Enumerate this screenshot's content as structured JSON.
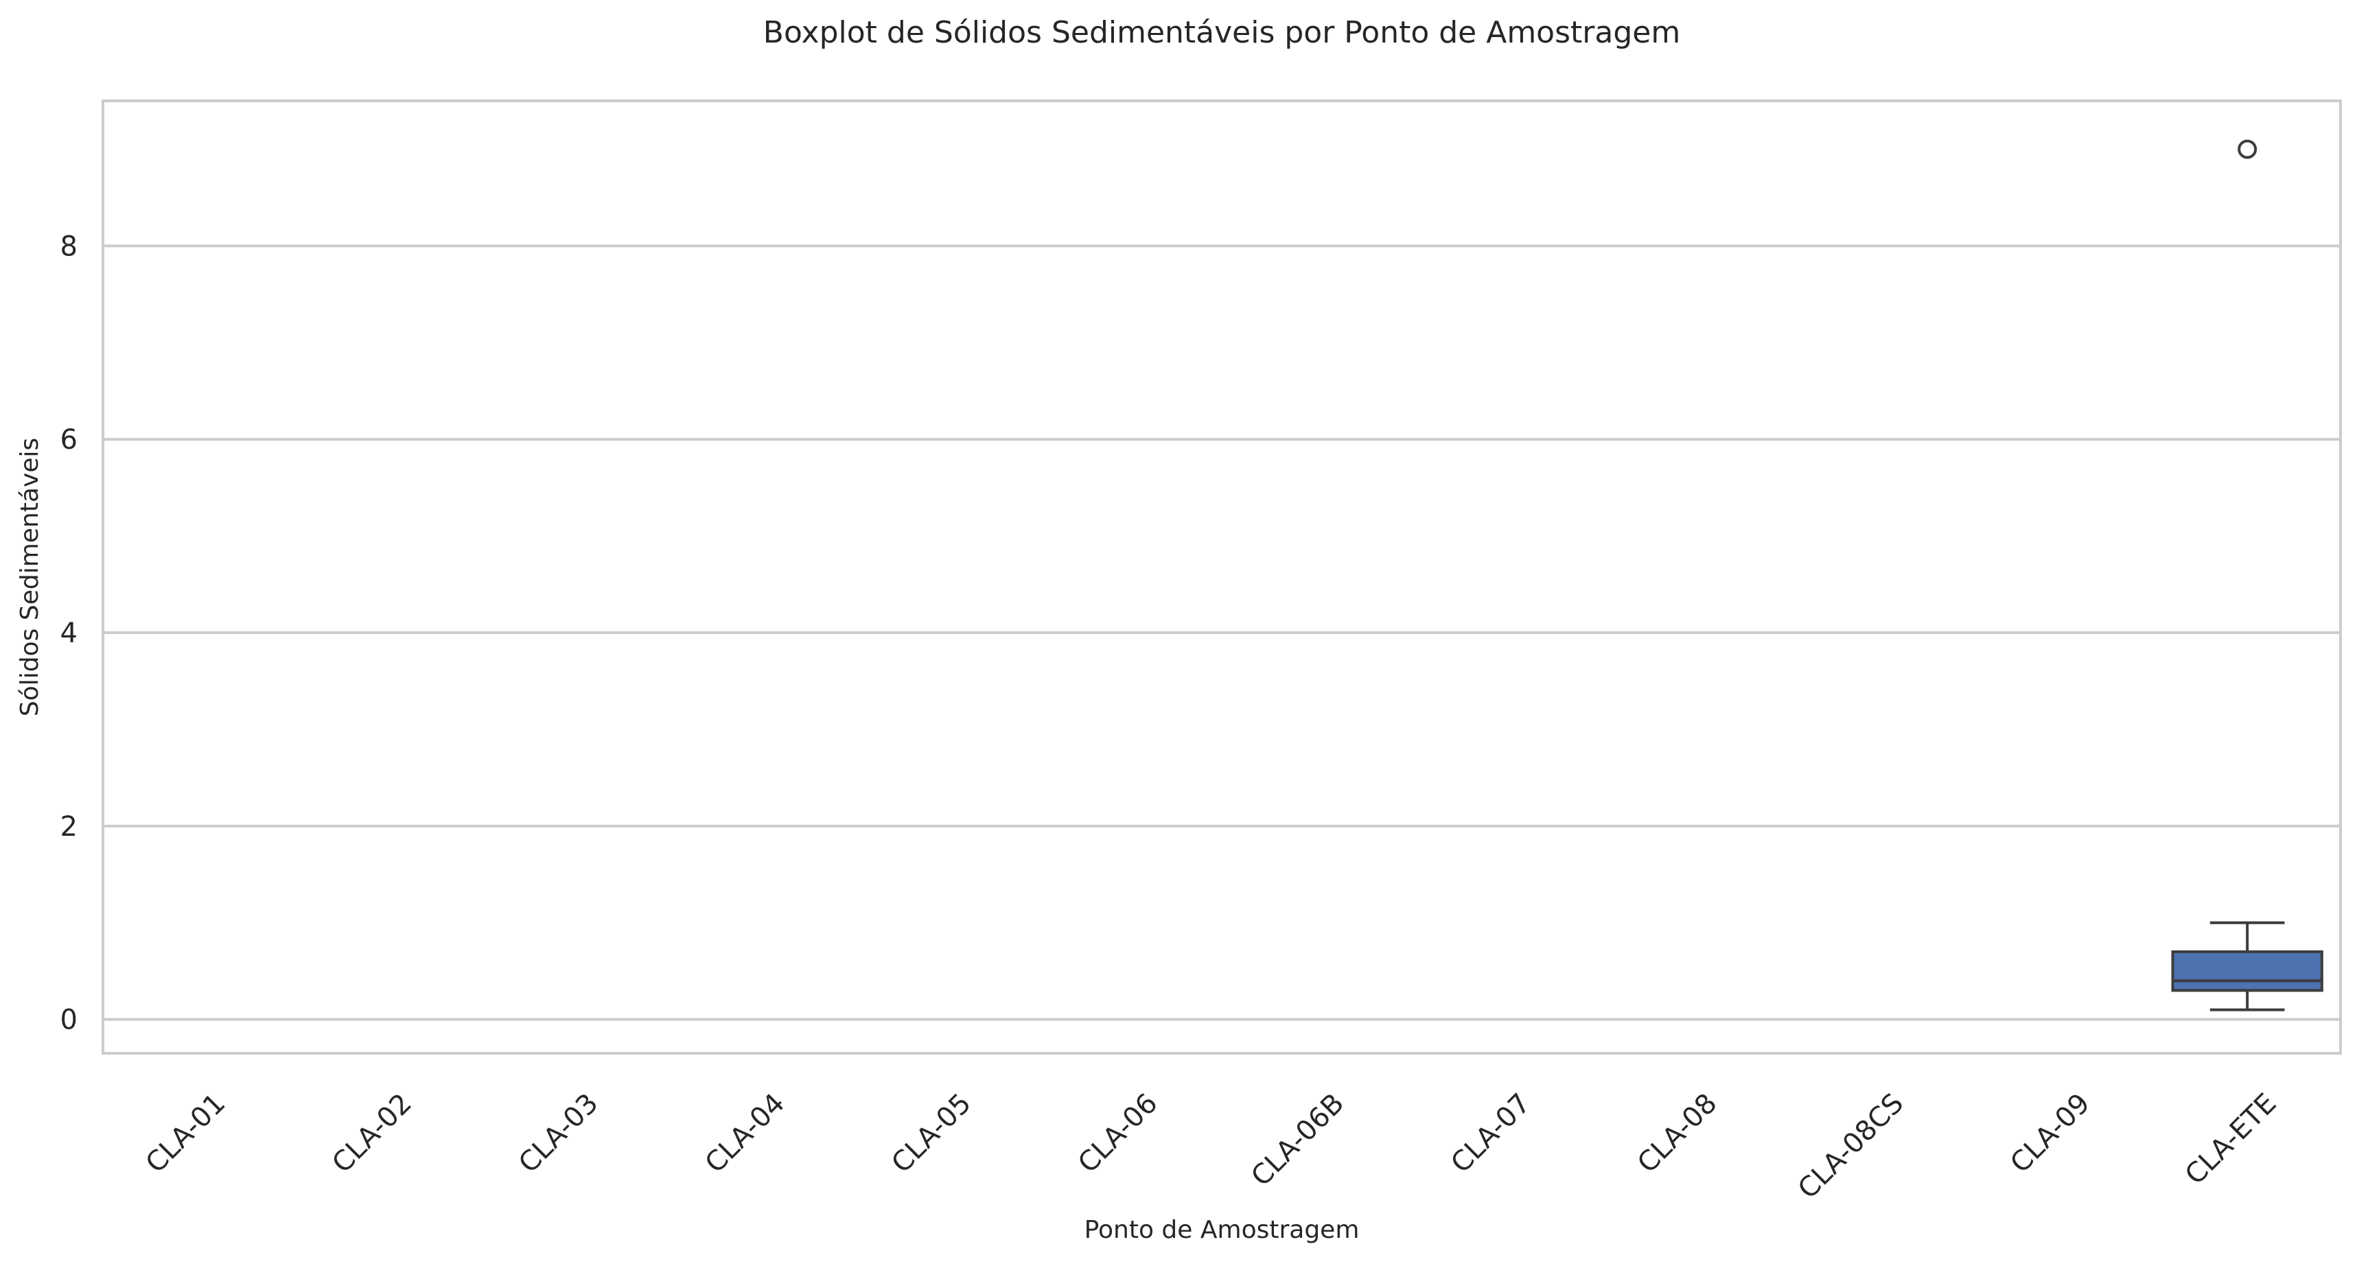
{
  "chart_data": {
    "type": "box",
    "title": "Boxplot de Sólidos Sedimentáveis por Ponto de Amostragem",
    "xlabel": "Ponto de Amostragem",
    "ylabel": "Sólidos Sedimentáveis",
    "categories": [
      "CLA-01",
      "CLA-02",
      "CLA-03",
      "CLA-04",
      "CLA-05",
      "CLA-06",
      "CLA-06B",
      "CLA-07",
      "CLA-08",
      "CLA-08CS",
      "CLA-09",
      "CLA-ETE"
    ],
    "ylim": [
      -0.35,
      9.5
    ],
    "yticks": [
      0,
      2,
      4,
      6,
      8
    ],
    "grid": true,
    "x_tick_rotation": 45,
    "box_color": "#4c72b0",
    "line_color": "#3d3d3d",
    "grid_color": "#cccccc",
    "boxes": [
      {
        "category": "CLA-01"
      },
      {
        "category": "CLA-02"
      },
      {
        "category": "CLA-03"
      },
      {
        "category": "CLA-04"
      },
      {
        "category": "CLA-05"
      },
      {
        "category": "CLA-06"
      },
      {
        "category": "CLA-06B"
      },
      {
        "category": "CLA-07"
      },
      {
        "category": "CLA-08"
      },
      {
        "category": "CLA-08CS"
      },
      {
        "category": "CLA-09"
      },
      {
        "category": "CLA-ETE",
        "whisker_low": 0.1,
        "q1": 0.3,
        "median": 0.4,
        "q3": 0.7,
        "whisker_high": 1.0,
        "outliers": [
          9.0
        ]
      }
    ]
  }
}
